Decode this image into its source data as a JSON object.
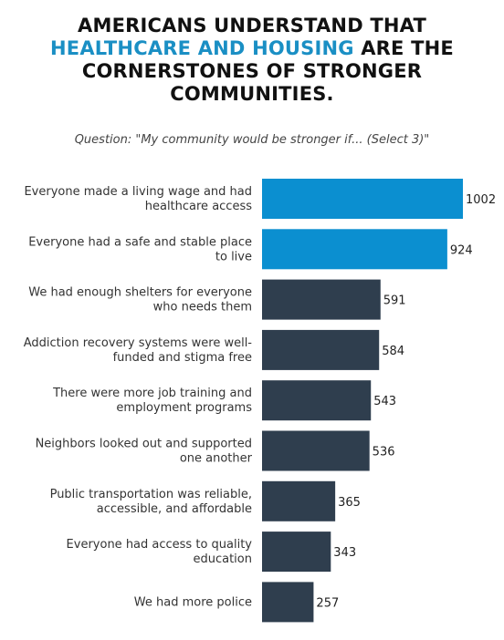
{
  "title": {
    "line1": "AMERICANS UNDERSTAND THAT",
    "highlight": "HEALTHCARE AND HOUSING",
    "line2_rest": " ARE THE",
    "line3": "CORNERSTONES OF STRONGER",
    "line4": "COMMUNITIES."
  },
  "subtitle": "Question: \"My community would be stronger if... (Select 3)\"",
  "colors": {
    "highlight": "#1a8fc4",
    "default_bar": "#2f3e4e",
    "highlight_bar": "#0b8fd0"
  },
  "chart_data": {
    "type": "bar",
    "orientation": "horizontal",
    "categories": [
      [
        "Everyone made a living wage and had",
        "healthcare access"
      ],
      [
        "Everyone had a safe and stable place",
        "to live"
      ],
      [
        "We had enough shelters for everyone",
        "who needs them"
      ],
      [
        "Addiction recovery systems were well-",
        "funded and stigma free"
      ],
      [
        "There were more job training and",
        "employment programs"
      ],
      [
        "Neighbors looked out and supported",
        "one another"
      ],
      [
        "Public transportation was reliable,",
        "accessible, and affordable"
      ],
      [
        "Everyone had access to quality",
        "education"
      ],
      [
        "We had more police"
      ]
    ],
    "values": [
      1002,
      924,
      591,
      584,
      543,
      536,
      365,
      343,
      257
    ],
    "highlighted": [
      true,
      true,
      false,
      false,
      false,
      false,
      false,
      false,
      false
    ],
    "value_labels": [
      "1002",
      "924",
      "591",
      "584",
      "543",
      "536",
      "365",
      "343",
      "257"
    ],
    "xlim": [
      0,
      1002
    ],
    "grid": false,
    "legend": "none"
  }
}
